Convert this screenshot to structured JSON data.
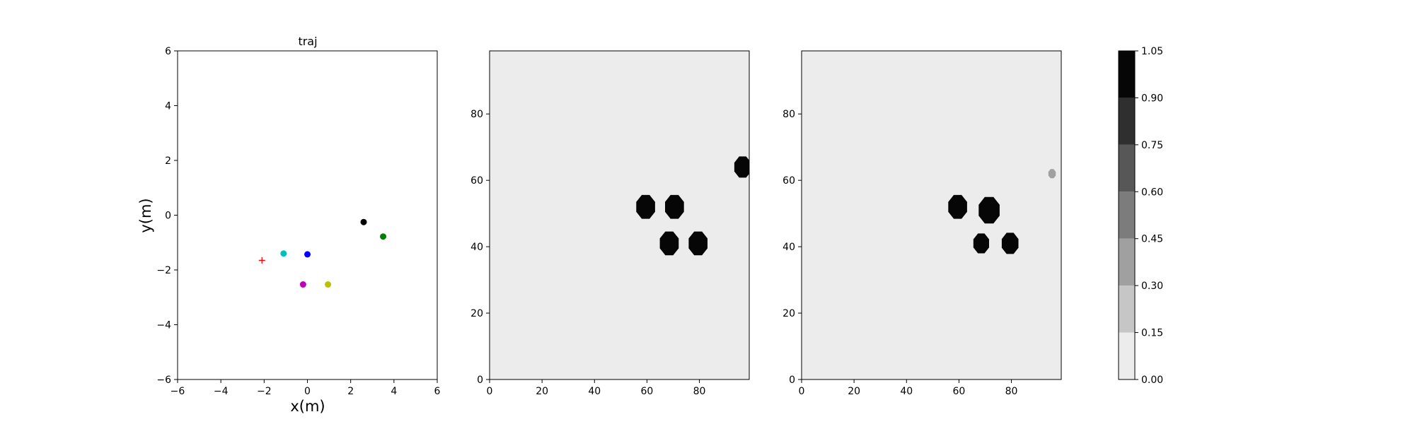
{
  "chart_data": [
    {
      "type": "scatter",
      "title": "traj",
      "xlabel": "x(m)",
      "ylabel": "y(m)",
      "xlim": [
        -6,
        6
      ],
      "ylim": [
        -6,
        6
      ],
      "xticks": [
        -6,
        -4,
        -2,
        0,
        2,
        4,
        6
      ],
      "yticks": [
        -6,
        -4,
        -2,
        0,
        2,
        4,
        6
      ],
      "grid": false,
      "points": [
        {
          "x": -2.1,
          "y": -1.65,
          "color": "#ff0000",
          "marker": "plus"
        },
        {
          "x": -1.1,
          "y": -1.4,
          "color": "#00bfbf",
          "marker": "circle"
        },
        {
          "x": 0.0,
          "y": -1.43,
          "color": "#0000ff",
          "marker": "circle"
        },
        {
          "x": -0.2,
          "y": -2.53,
          "color": "#bf00bf",
          "marker": "circle"
        },
        {
          "x": 0.95,
          "y": -2.53,
          "color": "#bfbf00",
          "marker": "circle"
        },
        {
          "x": 2.6,
          "y": -0.25,
          "color": "#000000",
          "marker": "circle"
        },
        {
          "x": 3.5,
          "y": -0.78,
          "color": "#008000",
          "marker": "circle"
        }
      ]
    },
    {
      "type": "heatmap",
      "xlim": [
        0,
        99
      ],
      "ylim": [
        0,
        99
      ],
      "xticks": [
        0,
        20,
        40,
        60,
        80
      ],
      "yticks": [
        0,
        20,
        40,
        60,
        80
      ],
      "background_level": 0.0,
      "blobs": [
        {
          "cx": 59.5,
          "cy": 52,
          "r": 3.6,
          "level": 1.0
        },
        {
          "cx": 70.5,
          "cy": 52,
          "r": 3.6,
          "level": 1.0
        },
        {
          "cx": 68.5,
          "cy": 41,
          "r": 3.6,
          "level": 1.0
        },
        {
          "cx": 79.5,
          "cy": 41,
          "r": 3.6,
          "level": 1.0
        },
        {
          "cx": 96.5,
          "cy": 64,
          "r": 3.2,
          "level": 1.0
        }
      ]
    },
    {
      "type": "heatmap",
      "xlim": [
        0,
        99
      ],
      "ylim": [
        0,
        99
      ],
      "xticks": [
        0,
        20,
        40,
        60,
        80
      ],
      "yticks": [
        0,
        20,
        40,
        60,
        80
      ],
      "background_level": 0.0,
      "blobs": [
        {
          "cx": 59.5,
          "cy": 52,
          "r": 3.6,
          "level": 1.0
        },
        {
          "cx": 71.5,
          "cy": 51,
          "r": 4.0,
          "level": 1.0
        },
        {
          "cx": 68.5,
          "cy": 41,
          "r": 3.0,
          "level": 1.0
        },
        {
          "cx": 79.5,
          "cy": 41,
          "r": 3.2,
          "level": 1.0
        },
        {
          "cx": 95.5,
          "cy": 62,
          "r": 1.4,
          "level": 0.3
        }
      ]
    }
  ],
  "colorbar": {
    "levels": [
      0.0,
      0.15,
      0.3,
      0.45,
      0.6,
      0.75,
      0.9,
      1.05
    ],
    "tick_labels": [
      "0.00",
      "0.15",
      "0.30",
      "0.45",
      "0.60",
      "0.75",
      "0.90",
      "1.05"
    ],
    "colors": [
      "#ececec",
      "#c6c6c6",
      "#a0a0a0",
      "#7c7c7c",
      "#575757",
      "#2f2f2f",
      "#060606"
    ]
  }
}
